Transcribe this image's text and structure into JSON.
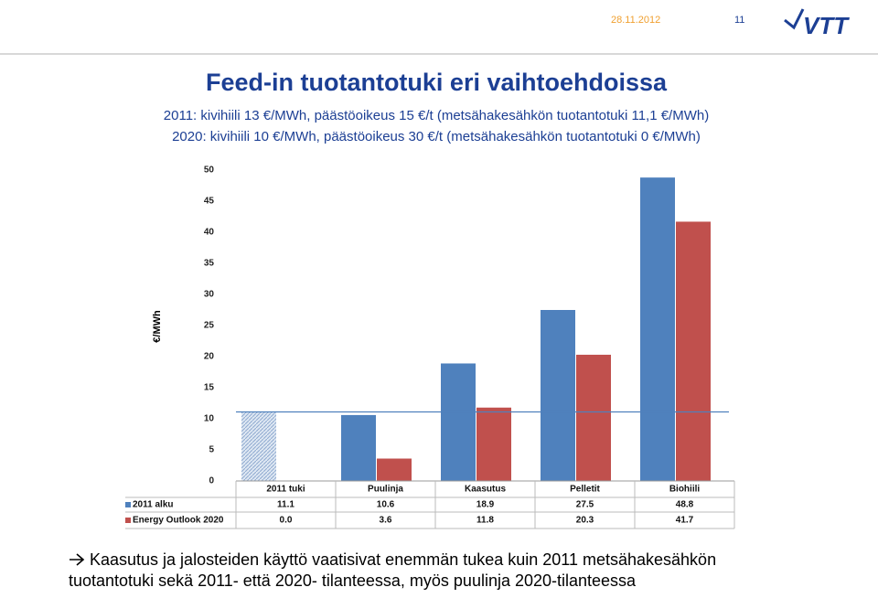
{
  "header": {
    "date": "28.11.2012",
    "page": "11",
    "logo": "VTT"
  },
  "title": "Feed-in tuotantotuki eri vaihtoehdoissa",
  "subtitles": [
    "2011: kivihiili 13 €/MWh, päästöoikeus 15 €/t (metsähakesähkön tuotantotuki 11,1 €/MWh)",
    "2020: kivihiili 10 €/MWh, päästöoikeus 30 €/t (metsähakesähkön tuotantotuki 0 €/MWh)"
  ],
  "chart_data": {
    "type": "bar",
    "y_label": "€/MWh",
    "categories": [
      "2011 tuki",
      "Puulinja",
      "Kaasutus",
      "Pelletit",
      "Biohiili"
    ],
    "series": [
      {
        "name": "2011 alku",
        "color": "#4f81bd",
        "values": [
          11.1,
          10.6,
          18.9,
          27.5,
          48.8
        ],
        "value_labels": [
          "11.1",
          "10.6",
          "18.9",
          "27.5",
          "48.8"
        ],
        "hatched": [
          true,
          false,
          false,
          false,
          false
        ]
      },
      {
        "name": "Energy Outlook 2020",
        "color": "#c0504d",
        "values": [
          0,
          3.6,
          11.8,
          20.3,
          41.7
        ],
        "value_labels": [
          "0.0",
          "3.6",
          "11.8",
          "20.3",
          "41.7"
        ]
      }
    ],
    "hline": 11.1,
    "hline_color": "#4f81bd",
    "ylim": [
      0,
      50
    ],
    "yticks": [
      0,
      5,
      10,
      15,
      20,
      25,
      30,
      35,
      40,
      45,
      50
    ]
  },
  "footer": [
    "Kaasutus ja jalosteiden käyttö vaatisivat enemmän tukea kuin 2011 metsähakesähkön",
    "tuotantotuki sekä 2011- että 2020- tilanteessa, myös puulinja 2020-tilanteessa"
  ]
}
